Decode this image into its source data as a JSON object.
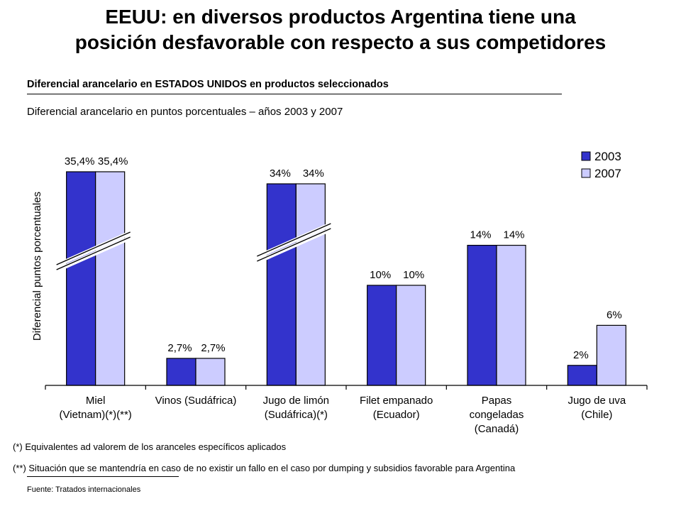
{
  "header": {
    "title_line1": "EEUU: en diversos productos Argentina tiene una",
    "title_line2": "posición desfavorable con respecto a sus competidores",
    "subtitle": "Diferencial arancelario en ESTADOS UNIDOS en productos seleccionados",
    "subtitle2": "Diferencial arancelario en puntos porcentuales – años 2003 y 2007"
  },
  "chart_data": {
    "type": "bar",
    "ylabel": "Diferencial puntos porcentuales",
    "categories": [
      [
        "Miel",
        "(Vietnam)(*)(**)"
      ],
      [
        "Vinos (Sudáfrica)"
      ],
      [
        "Jugo de limón",
        "(Sudáfrica)(*)"
      ],
      [
        "Filet empanado",
        "(Ecuador)"
      ],
      [
        "Papas",
        "congeladas",
        "(Canadá)"
      ],
      [
        "Jugo de uva",
        "(Chile)"
      ]
    ],
    "series": [
      {
        "name": "2003",
        "color": "#3333cc",
        "values": [
          35.4,
          2.7,
          34,
          10,
          14,
          2
        ],
        "labels": [
          "35,4%",
          "2,7%",
          "34%",
          "10%",
          "14%",
          "2%"
        ]
      },
      {
        "name": "2007",
        "color": "#ccccff",
        "values": [
          35.4,
          2.7,
          34,
          10,
          14,
          6
        ],
        "labels": [
          "35,4%",
          "2,7%",
          "34%",
          "10%",
          "14%",
          "6%"
        ]
      }
    ],
    "axis_break_categories": [
      0,
      2
    ],
    "legend_position": "top-right",
    "grid": false
  },
  "notes": {
    "note1": "(*) Equivalentes ad valorem de los aranceles específicos aplicados",
    "note2": "(**) Situación que se mantendría en caso de no existir un fallo en el caso por dumping y subsidios favorable para Argentina",
    "source": "Fuente: Tratados internacionales"
  }
}
